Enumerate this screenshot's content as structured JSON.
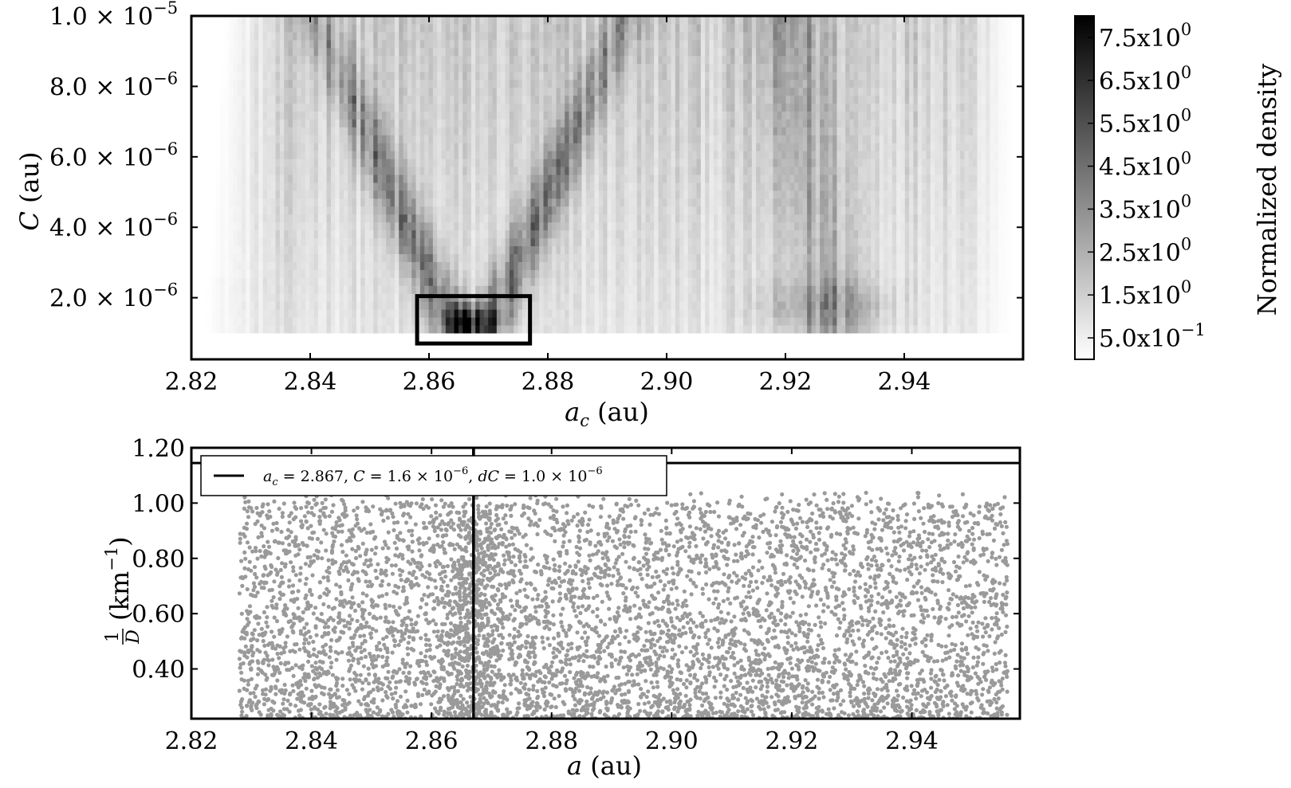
{
  "chart_data": [
    {
      "type": "heatmap",
      "xlabel": "a_c (au)",
      "ylabel": "C (au)",
      "xlim": [
        2.82,
        2.96
      ],
      "ylim": [
        2.5e-07,
        1e-05
      ],
      "x_ticks": [
        "2.82",
        "2.84",
        "2.86",
        "2.88",
        "2.90",
        "2.92",
        "2.94"
      ],
      "x_tick_values": [
        2.82,
        2.84,
        2.86,
        2.88,
        2.9,
        2.92,
        2.94
      ],
      "y_ticks": [
        {
          "value": 2e-06,
          "mant": "2.0",
          "exp": "−6"
        },
        {
          "value": 4e-06,
          "mant": "4.0",
          "exp": "−6"
        },
        {
          "value": 6e-06,
          "mant": "6.0",
          "exp": "−6"
        },
        {
          "value": 8e-06,
          "mant": "8.0",
          "exp": "−6"
        },
        {
          "value": 1e-05,
          "mant": "1.0",
          "exp": "−5"
        }
      ],
      "colorbar": {
        "label": "Normalized density",
        "colormap": "Greys",
        "range": [
          0.0,
          8.0
        ],
        "ticks": [
          {
            "value": 0.5,
            "mant": "5.0x10",
            "exp": "−1"
          },
          {
            "value": 1.5,
            "mant": "1.5x10",
            "exp": "0"
          },
          {
            "value": 2.5,
            "mant": "2.5x10",
            "exp": "0"
          },
          {
            "value": 3.5,
            "mant": "3.5x10",
            "exp": "0"
          },
          {
            "value": 4.5,
            "mant": "4.5x10",
            "exp": "0"
          },
          {
            "value": 5.5,
            "mant": "5.5x10",
            "exp": "0"
          },
          {
            "value": 6.5,
            "mant": "6.5x10",
            "exp": "0"
          },
          {
            "value": 7.5,
            "mant": "7.5x10",
            "exp": "0"
          }
        ]
      },
      "annotation": {
        "shape": "rectangle",
        "color": "#000000",
        "x_range": [
          2.858,
          2.877
        ],
        "y_range": [
          7e-07,
          2e-06
        ]
      },
      "features": [
        {
          "a_c": 2.867,
          "C_min": 1e-06,
          "C_max": 9e-06,
          "description": "V-shaped high-density family signature"
        },
        {
          "a_c": 2.925,
          "C_min": 1e-06,
          "C_max": 1e-05,
          "description": "secondary vertical density band"
        }
      ],
      "data_extent": {
        "x": [
          2.822,
          2.958
        ],
        "y": [
          1e-06,
          1e-05
        ]
      }
    },
    {
      "type": "scatter",
      "xlabel": "a (au)",
      "ylabel": "1/D (km^-1)",
      "xlim": [
        2.82,
        2.958
      ],
      "ylim": [
        0.22,
        1.2
      ],
      "x_ticks": [
        "2.82",
        "2.84",
        "2.86",
        "2.88",
        "2.90",
        "2.92",
        "2.94"
      ],
      "x_tick_values": [
        2.82,
        2.84,
        2.86,
        2.88,
        2.9,
        2.92,
        2.94
      ],
      "y_ticks": [
        "0.40",
        "0.60",
        "0.80",
        "1.00",
        "1.20"
      ],
      "y_tick_values": [
        0.4,
        0.6,
        0.8,
        1.0,
        1.2
      ],
      "point_color": "#9a9a9a",
      "point_count_approx": 6200,
      "x_extent": [
        2.828,
        2.956
      ],
      "density_profile": "higher density at lower 1/D and near a = 2.867",
      "v_shape": {
        "a_c": 2.867,
        "C": 1.6e-06,
        "dC": 1e-06
      },
      "legend": {
        "location": "upper left",
        "text": "a_c = 2.867, C = 1.6 × 10^-6, dC = 1.0 × 10^-6",
        "parts": [
          {
            "italic": "a",
            "sub": "c",
            "rest": " = 2.867,  "
          },
          {
            "italic": "C",
            "rest": " = 1.6 × 10",
            "sup": "−6",
            "tail": ",  "
          },
          {
            "italic": "dC",
            "rest": " = 1.0 × 10",
            "sup": "−6"
          }
        ]
      },
      "horizontal_line": {
        "y": 1.145,
        "style": "solid"
      }
    }
  ]
}
